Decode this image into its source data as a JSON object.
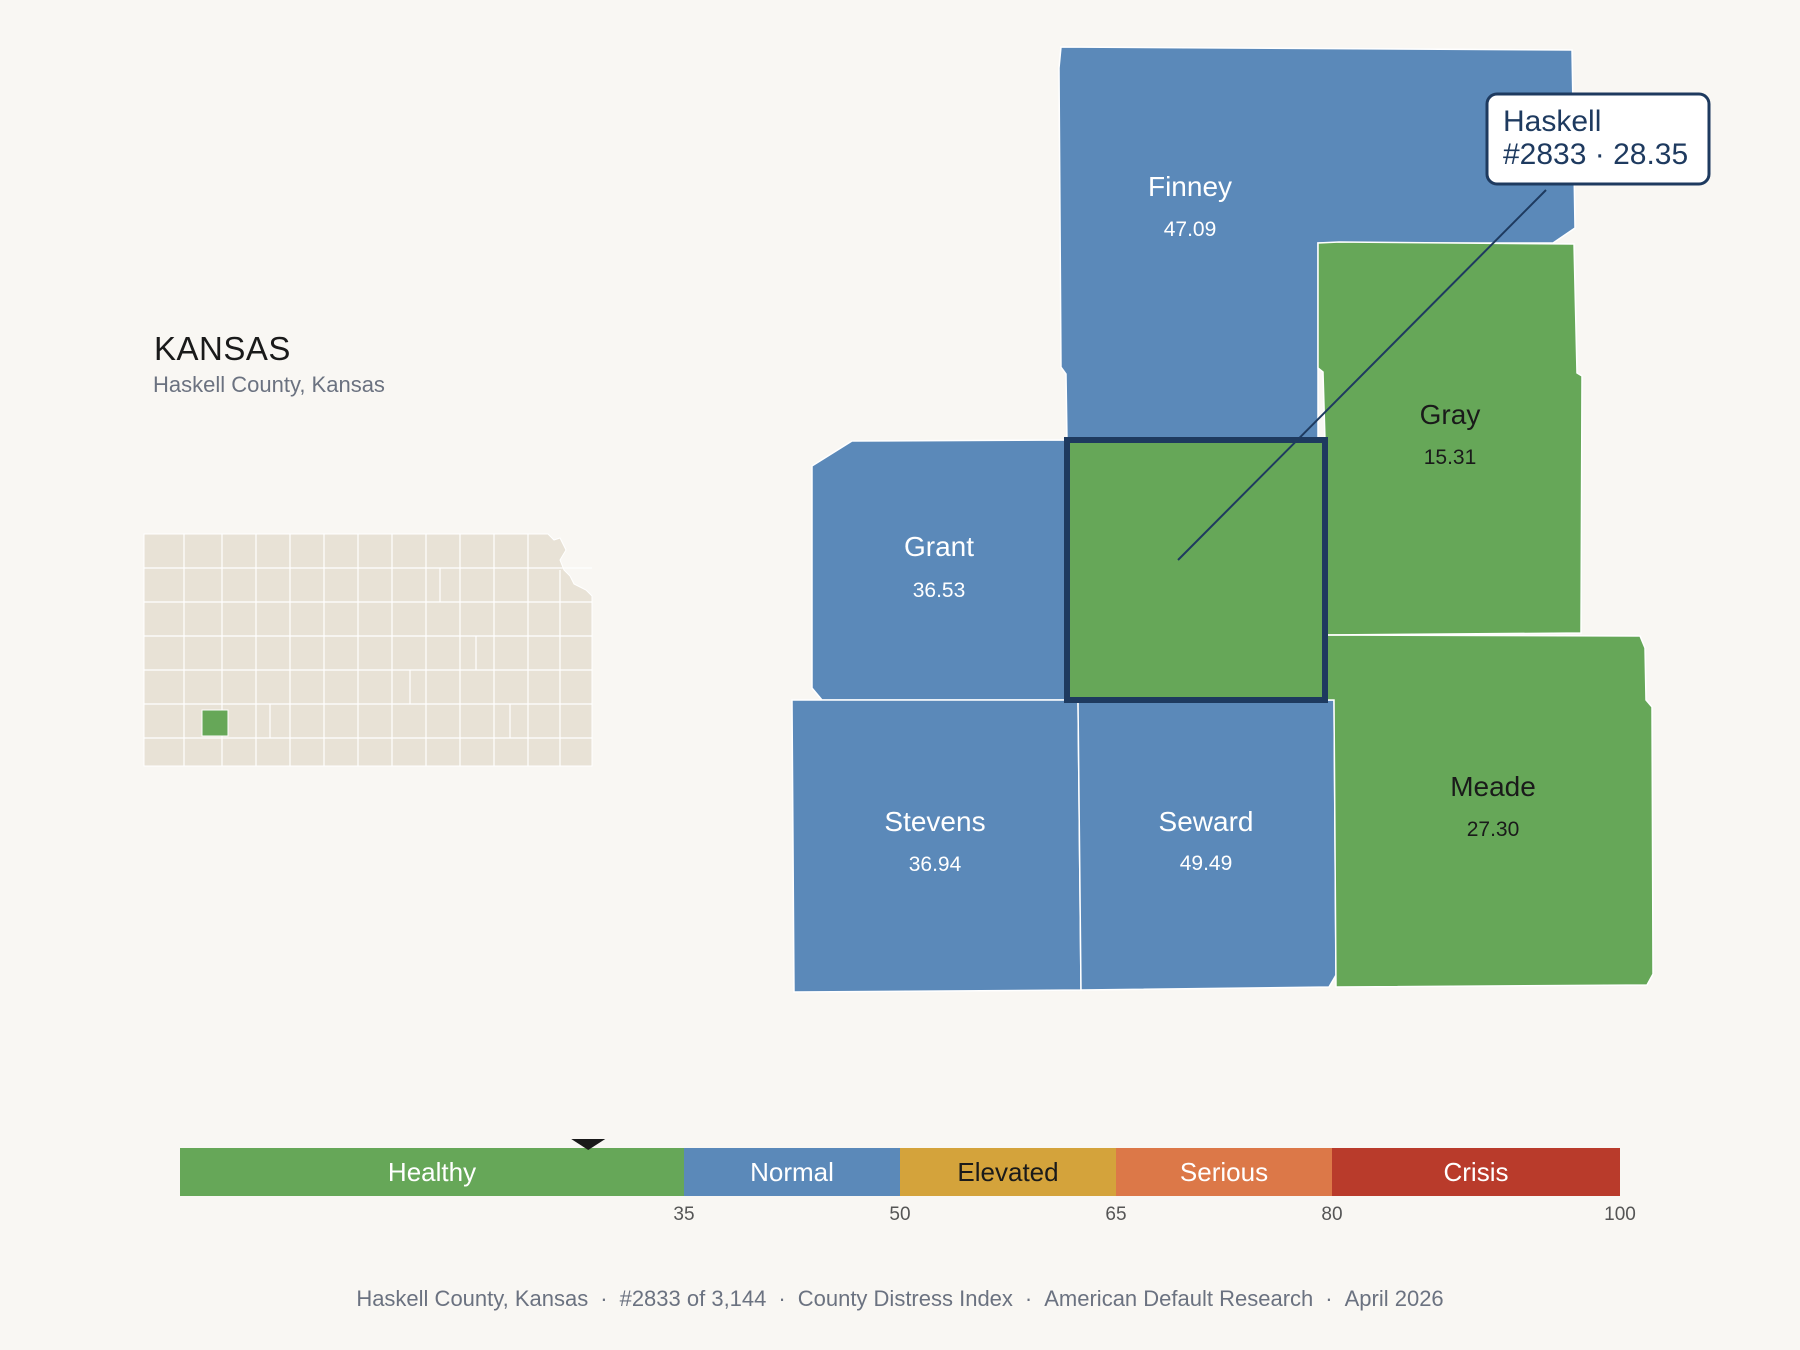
{
  "header": {
    "title": "KANSAS",
    "subtitle": "Haskell County, Kansas"
  },
  "colors": {
    "healthy": "#66a758",
    "normal": "#5b89b9",
    "elevated": "#d4a33b",
    "serious": "#dc7848",
    "crisis": "#b93b2b",
    "highlight_border": "#1e3a5f",
    "inset_fill": "#e8e2d6",
    "background": "#f9f7f3"
  },
  "selected": {
    "name": "Haskell",
    "rank": "#2833",
    "value": "28.35",
    "label_line1": "Haskell",
    "label_line2": "#2833 · 28.35"
  },
  "counties": [
    {
      "name": "Finney",
      "value": "47.09",
      "category": "normal"
    },
    {
      "name": "Gray",
      "value": "15.31",
      "category": "healthy"
    },
    {
      "name": "Grant",
      "value": "36.53",
      "category": "normal"
    },
    {
      "name": "Haskell",
      "value": "28.35",
      "category": "healthy"
    },
    {
      "name": "Stevens",
      "value": "36.94",
      "category": "normal"
    },
    {
      "name": "Seward",
      "value": "49.49",
      "category": "normal"
    },
    {
      "name": "Meade",
      "value": "27.30",
      "category": "healthy"
    }
  ],
  "scale": {
    "min": 0,
    "max": 100,
    "marker_value": 28.35,
    "bands": [
      {
        "label": "Healthy",
        "from": 0,
        "to": 35,
        "color": "#66a758"
      },
      {
        "label": "Normal",
        "from": 35,
        "to": 50,
        "color": "#5b89b9"
      },
      {
        "label": "Elevated",
        "from": 50,
        "to": 65,
        "color": "#d4a33b"
      },
      {
        "label": "Serious",
        "from": 65,
        "to": 80,
        "color": "#dc7848"
      },
      {
        "label": "Crisis",
        "from": 80,
        "to": 100,
        "color": "#b93b2b"
      }
    ],
    "ticks": [
      "35",
      "50",
      "65",
      "80",
      "100"
    ]
  },
  "footer": {
    "location": "Haskell County, Kansas",
    "rank": "#2833 of 3,144",
    "index": "County Distress Index",
    "source": "American Default Research",
    "date": "April 2026"
  }
}
